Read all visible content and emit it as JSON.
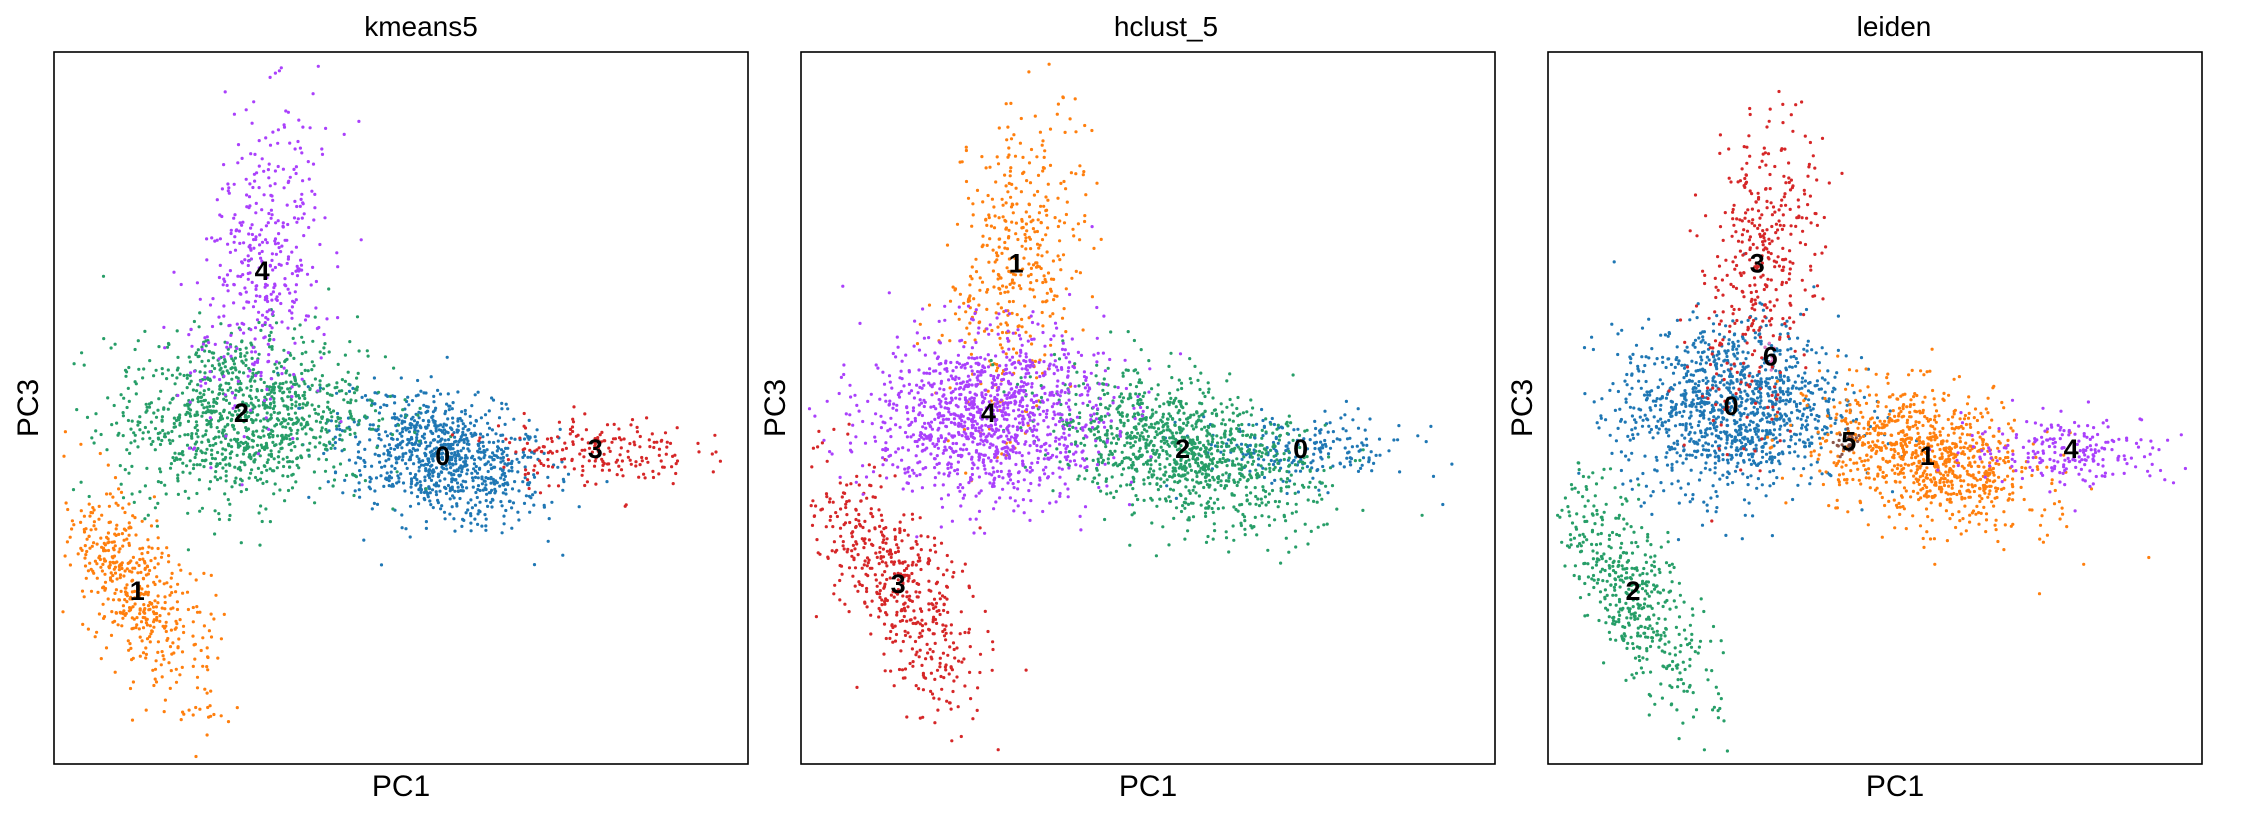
{
  "chart_data": [
    {
      "type": "scatter",
      "title": "kmeans5",
      "xlabel": "PC1",
      "ylabel": "PC3",
      "xticks": false,
      "yticks": false,
      "grid": false,
      "legend": "on data",
      "clusters": [
        {
          "label": "0",
          "color": "#1f77b4",
          "x": 0.56,
          "y": 0.43,
          "sx": 0.075,
          "sy": 0.042,
          "rot": -0.28,
          "n": 900
        },
        {
          "label": "1",
          "color": "#ff7f0e",
          "x": 0.12,
          "y": 0.24,
          "sx": 0.035,
          "sy": 0.085,
          "rot": 0.55,
          "n": 500
        },
        {
          "label": "2",
          "color": "#279e68",
          "x": 0.27,
          "y": 0.49,
          "sx": 0.09,
          "sy": 0.06,
          "rot": 0.1,
          "n": 1100
        },
        {
          "label": "3",
          "color": "#d62728",
          "x": 0.78,
          "y": 0.44,
          "sx": 0.07,
          "sy": 0.025,
          "rot": 0.0,
          "n": 200
        },
        {
          "label": "4",
          "color": "#aa40fc",
          "x": 0.3,
          "y": 0.69,
          "sx": 0.045,
          "sy": 0.11,
          "rot": -0.15,
          "n": 420
        }
      ]
    },
    {
      "type": "scatter",
      "title": "hclust_5",
      "xlabel": "PC1",
      "ylabel": "PC3",
      "xticks": false,
      "yticks": false,
      "grid": false,
      "legend": "on data",
      "clusters": [
        {
          "label": "0",
          "color": "#1f77b4",
          "x": 0.72,
          "y": 0.44,
          "sx": 0.08,
          "sy": 0.025,
          "rot": 0.0,
          "n": 220
        },
        {
          "label": "1",
          "color": "#ff7f0e",
          "x": 0.31,
          "y": 0.7,
          "sx": 0.045,
          "sy": 0.11,
          "rot": -0.15,
          "n": 420
        },
        {
          "label": "2",
          "color": "#279e68",
          "x": 0.55,
          "y": 0.44,
          "sx": 0.1,
          "sy": 0.045,
          "rot": -0.3,
          "n": 1100
        },
        {
          "label": "3",
          "color": "#d62728",
          "x": 0.14,
          "y": 0.25,
          "sx": 0.04,
          "sy": 0.095,
          "rot": 0.55,
          "n": 520
        },
        {
          "label": "4",
          "color": "#aa40fc",
          "x": 0.27,
          "y": 0.49,
          "sx": 0.085,
          "sy": 0.06,
          "rot": 0.05,
          "n": 1200
        }
      ]
    },
    {
      "type": "scatter",
      "title": "leiden",
      "xlabel": "PC1",
      "ylabel": "PC3",
      "xticks": false,
      "yticks": false,
      "grid": false,
      "legend": "on data",
      "clusters": [
        {
          "label": "0",
          "color": "#1f77b4",
          "x": 0.28,
          "y": 0.5,
          "sx": 0.085,
          "sy": 0.06,
          "rot": 0.05,
          "n": 1200
        },
        {
          "label": "1",
          "color": "#ff7f0e",
          "x": 0.58,
          "y": 0.43,
          "sx": 0.085,
          "sy": 0.045,
          "rot": -0.28,
          "n": 900
        },
        {
          "label": "2",
          "color": "#279e68",
          "x": 0.13,
          "y": 0.24,
          "sx": 0.035,
          "sy": 0.09,
          "rot": 0.55,
          "n": 480
        },
        {
          "label": "3",
          "color": "#d62728",
          "x": 0.32,
          "y": 0.7,
          "sx": 0.045,
          "sy": 0.11,
          "rot": -0.15,
          "n": 400
        },
        {
          "label": "4",
          "color": "#aa40fc",
          "x": 0.8,
          "y": 0.44,
          "sx": 0.08,
          "sy": 0.025,
          "rot": 0.0,
          "n": 220
        },
        {
          "label": "5",
          "color": "#8c564b",
          "x": 0.46,
          "y": 0.45,
          "sx": 0.01,
          "sy": 0.01,
          "rot": 0.0,
          "n": 25
        },
        {
          "label": "6",
          "color": "#e377c2",
          "x": 0.34,
          "y": 0.57,
          "sx": 0.008,
          "sy": 0.008,
          "rot": 0.0,
          "n": 12
        }
      ]
    }
  ]
}
